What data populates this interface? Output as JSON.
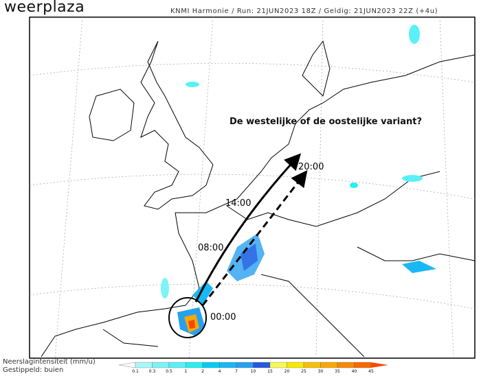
{
  "header": {
    "logo": "weerplaza",
    "run_info": "KNMI Harmonie / Run: 21JUN2023 18Z / Geldig: 21JUN2023 22Z (+4u)"
  },
  "annotations": {
    "question": "De westelijke of de oostelijke variant?",
    "times": [
      "00:00",
      "08:00",
      "14:00",
      "20:00"
    ]
  },
  "legend": {
    "title": "Neerslagintensiteit (mm/u)",
    "subtitle": "Gestippeld: buien",
    "ticks": [
      "0.1",
      "0.3",
      "0.5",
      "1",
      "2",
      "4",
      "7",
      "10",
      "15",
      "20",
      "25",
      "30",
      "35",
      "40",
      "45"
    ],
    "colors": [
      "#a8f8f8",
      "#7ef3f5",
      "#5af0f8",
      "#28f0f0",
      "#00ccf4",
      "#18b8f4",
      "#28a0f0",
      "#2858e0",
      "#f8f858",
      "#f8e800",
      "#f8c000",
      "#f8a800",
      "#f88800",
      "#f86800",
      "#f84800"
    ]
  }
}
